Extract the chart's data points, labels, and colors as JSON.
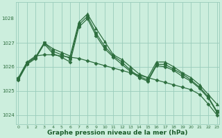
{
  "x": [
    0,
    1,
    2,
    3,
    4,
    5,
    6,
    7,
    8,
    9,
    10,
    11,
    12,
    13,
    14,
    15,
    16,
    17,
    18,
    19,
    20,
    21,
    22,
    23
  ],
  "series": [
    {
      "y": [
        1025.55,
        1026.2,
        1026.45,
        1026.5,
        1026.5,
        1026.45,
        1026.4,
        1026.35,
        1026.25,
        1026.15,
        1026.05,
        1025.95,
        1025.85,
        1025.75,
        1025.65,
        1025.55,
        1025.45,
        1025.35,
        1025.25,
        1025.15,
        1025.05,
        1024.85,
        1024.45,
        1024.0
      ],
      "marker": "D",
      "linewidth": 0.9,
      "markersize": 2.5
    },
    {
      "y": [
        1025.5,
        1026.15,
        1026.4,
        1027.0,
        1026.75,
        1026.6,
        1026.45,
        1027.85,
        1028.2,
        1027.6,
        1027.05,
        1026.5,
        1026.3,
        1026.0,
        1025.7,
        1025.55,
        1026.2,
        1026.2,
        1026.0,
        1025.75,
        1025.55,
        1025.25,
        1024.85,
        1024.45
      ],
      "marker": "^",
      "linewidth": 0.9,
      "markersize": 3.0
    },
    {
      "y": [
        1025.5,
        1026.15,
        1026.4,
        1027.0,
        1026.65,
        1026.5,
        1026.35,
        1027.75,
        1028.1,
        1027.4,
        1026.85,
        1026.45,
        1026.2,
        1025.85,
        1025.6,
        1025.45,
        1026.1,
        1026.1,
        1025.9,
        1025.7,
        1025.45,
        1025.15,
        1024.75,
        1024.15
      ],
      "marker": "s",
      "linewidth": 0.9,
      "markersize": 2.5
    },
    {
      "y": [
        1025.45,
        1026.1,
        1026.35,
        1026.95,
        1026.55,
        1026.4,
        1026.2,
        1027.65,
        1028.0,
        1027.3,
        1026.75,
        1026.4,
        1026.1,
        1025.8,
        1025.55,
        1025.4,
        1026.05,
        1026.0,
        1025.85,
        1025.6,
        1025.4,
        1025.1,
        1024.7,
        1024.1
      ],
      "marker": "D",
      "linewidth": 0.9,
      "markersize": 2.5
    }
  ],
  "bg_color": "#cceedd",
  "grid_color": "#99ccbb",
  "line_color": "#2d6e3e",
  "xlabel": "Graphe pression niveau de la mer (hPa)",
  "xlabel_fontsize": 6.5,
  "xlabel_color": "#1a5c2a",
  "xtick_labels": [
    "0",
    "1",
    "2",
    "3",
    "4",
    "5",
    "6",
    "7",
    "8",
    "9",
    "10",
    "11",
    "12",
    "13",
    "14",
    "15",
    "16",
    "17",
    "18",
    "19",
    "20",
    "21",
    "22",
    "23"
  ],
  "ytick_values": [
    1024,
    1025,
    1026,
    1027
  ],
  "ylim": [
    1023.6,
    1028.7
  ],
  "xlim": [
    -0.3,
    23.3
  ],
  "figwidth": 3.2,
  "figheight": 2.0,
  "dpi": 100
}
